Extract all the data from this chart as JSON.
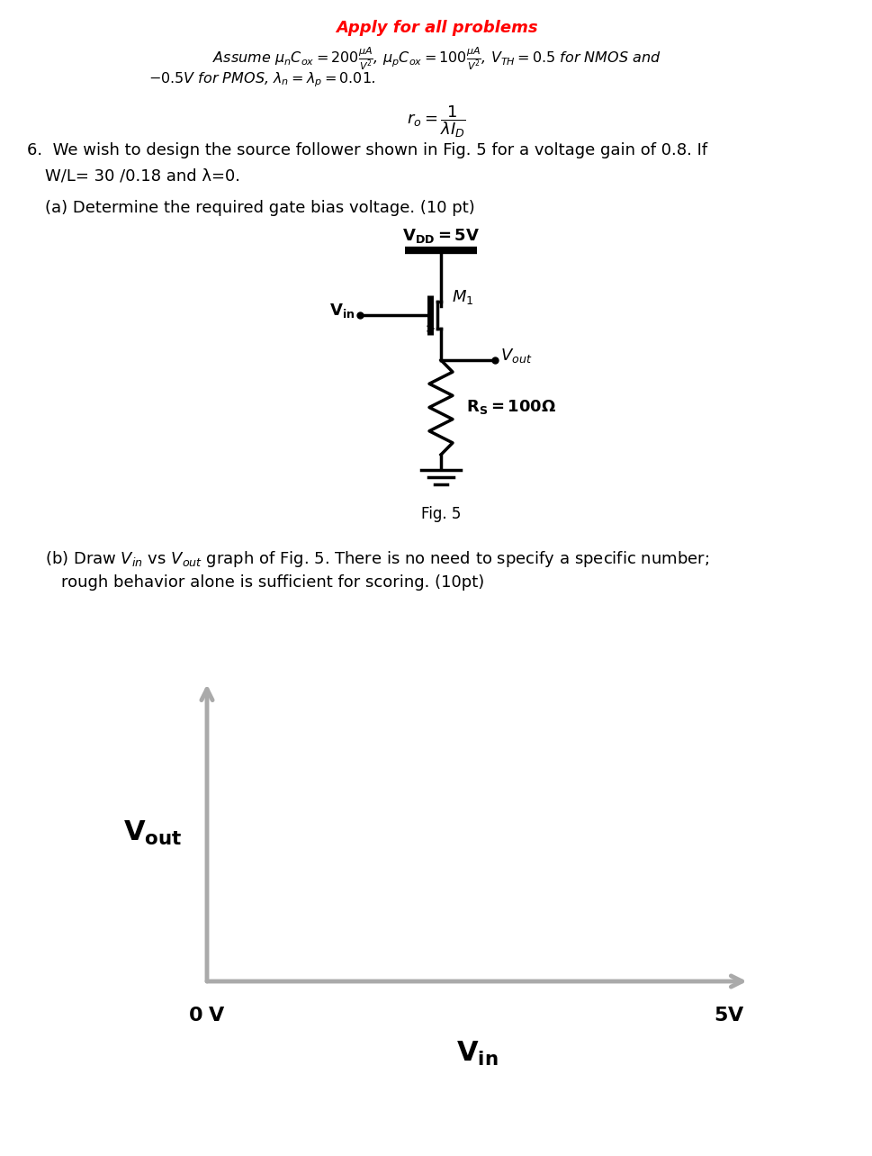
{
  "title_apply": "Apply for all problems",
  "title_color": "#FF0000",
  "assume_line1": "Assume $\\mu_n C_{ox} = 200\\frac{\\mu A}{V^2}$, $\\mu_p C_{ox} = 100\\frac{\\mu A}{V^2}$, $V_{TH} = 0.5$ for NMOS and",
  "assume_line2": "$-0.5V$ for PMOS, $\\lambda_n = \\lambda_p = 0.01$.",
  "ro_formula": "$r_o = \\dfrac{1}{\\lambda I_D}$",
  "part_a_text": "(a) Determine the required gate bias voltage. (10 pt)",
  "vdd_label": "$\\mathbf{V_{DD}=5V}$",
  "vin_label": "$\\mathbf{V_{in}}$",
  "m1_label": "$M_1$",
  "vout_label": "$V_{out}$",
  "rs_label": "$\\mathbf{R_S=100\\Omega}$",
  "fig_label": "Fig. 5",
  "axis_color": "#aaaaaa",
  "text_color": "#000000",
  "bg_color": "#ffffff"
}
